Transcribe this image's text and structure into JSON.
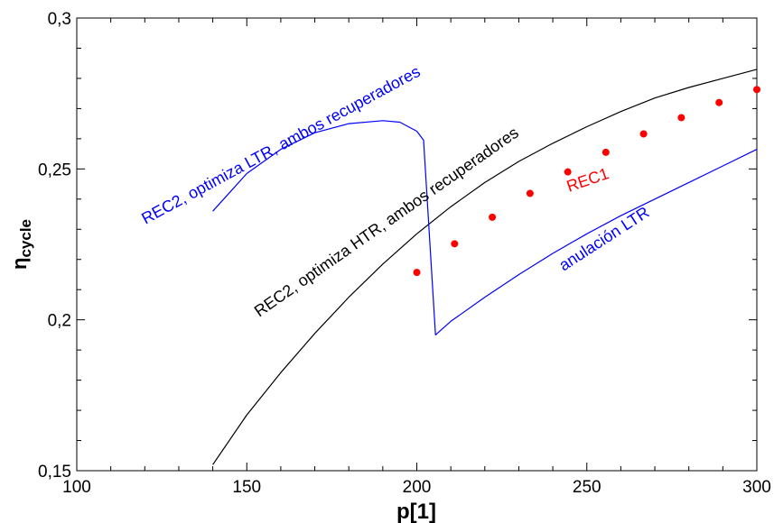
{
  "chart_data": {
    "type": "line",
    "xlabel": "p[1]",
    "ylabel": "η",
    "ylabel_sub": "cycle",
    "xlim": [
      100,
      300
    ],
    "ylim": [
      0.15,
      0.3
    ],
    "x_ticks": [
      100,
      150,
      200,
      250,
      300
    ],
    "x_tick_labels": [
      "100",
      "150",
      "200",
      "250",
      "300"
    ],
    "y_ticks": [
      0.15,
      0.2,
      0.25,
      0.3
    ],
    "y_tick_labels": [
      "0,15",
      "0,2",
      "0,25",
      "0,3"
    ],
    "grid": false,
    "series": [
      {
        "color": "#000000",
        "style": "line",
        "x": [
          140,
          150,
          160,
          170,
          180,
          190,
          200,
          210,
          220,
          230,
          240,
          250,
          260,
          270,
          280,
          290,
          300
        ],
        "y": [
          0.152,
          0.1685,
          0.1825,
          0.1955,
          0.2075,
          0.2185,
          0.2285,
          0.2375,
          0.2455,
          0.2525,
          0.2585,
          0.264,
          0.269,
          0.2735,
          0.277,
          0.28,
          0.283
        ]
      },
      {
        "color": "#0000ff",
        "style": "line",
        "x": [
          140,
          150,
          160,
          170,
          180,
          190,
          195,
          200,
          202,
          205.5,
          210,
          220,
          230,
          240,
          250,
          260,
          270,
          280,
          290,
          300
        ],
        "y": [
          0.236,
          0.2485,
          0.2565,
          0.262,
          0.265,
          0.266,
          0.2655,
          0.2625,
          0.2595,
          0.195,
          0.1995,
          0.2075,
          0.215,
          0.222,
          0.2285,
          0.2345,
          0.24,
          0.2455,
          0.251,
          0.2565
        ]
      },
      {
        "color": "#ff0000",
        "style": "markers",
        "x": [
          200,
          211.1,
          222.2,
          233.3,
          244.4,
          255.6,
          266.7,
          277.8,
          288.9,
          300
        ],
        "y": [
          0.2157,
          0.2252,
          0.234,
          0.2419,
          0.249,
          0.2555,
          0.2616,
          0.267,
          0.272,
          0.2763
        ]
      }
    ],
    "annotations": [
      {
        "text": "REC2, optimiza LTR, ambos recuperadores",
        "color": "#0000ff"
      },
      {
        "text": "REC2, optimiza HTR, ambos recuperadores",
        "color": "#000000"
      },
      {
        "text": "REC1",
        "color": "#ff0000"
      },
      {
        "text": "anulación LTR",
        "color": "#0000ff"
      }
    ]
  }
}
